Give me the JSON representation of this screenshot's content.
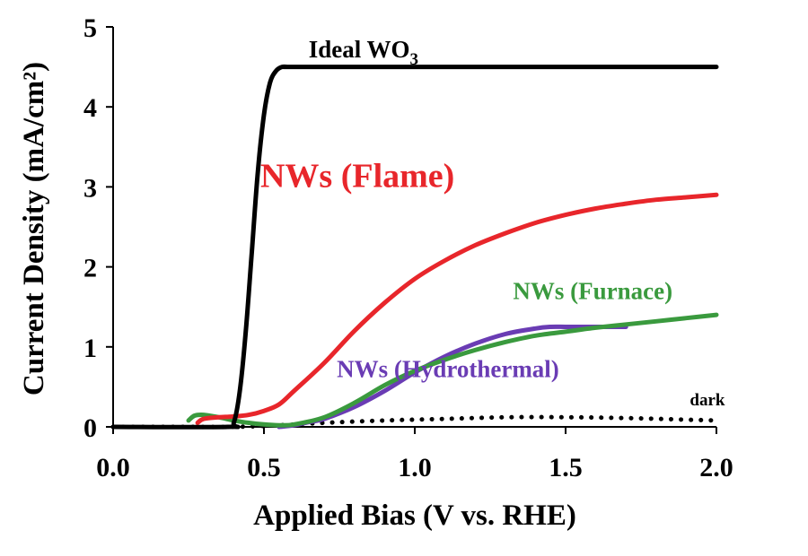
{
  "chart_data": {
    "type": "line",
    "xlabel": "Applied Bias (V vs. RHE)",
    "ylabel": "Current Density (mA/cm²)",
    "xlim": [
      0,
      2.0
    ],
    "ylim": [
      0,
      5
    ],
    "x_ticks": [
      "0.0",
      "0.5",
      "1.0",
      "1.5",
      "2.0"
    ],
    "y_ticks": [
      "0",
      "1",
      "2",
      "3",
      "4",
      "5"
    ],
    "grid": false,
    "legend": "inline labels",
    "series": [
      {
        "name": "Ideal WO3",
        "color": "#000000",
        "style": "solid",
        "x": [
          0.0,
          0.38,
          0.4,
          0.42,
          0.44,
          0.46,
          0.48,
          0.5,
          0.52,
          0.54,
          0.56,
          0.58,
          0.6,
          1.0,
          1.5,
          2.0
        ],
        "y": [
          0.0,
          0.0,
          0.05,
          0.45,
          1.2,
          2.2,
          3.2,
          3.9,
          4.3,
          4.45,
          4.5,
          4.5,
          4.5,
          4.5,
          4.5,
          4.5
        ]
      },
      {
        "name": "NWs (Flame)",
        "color": "#e8262b",
        "style": "solid",
        "x": [
          0.28,
          0.3,
          0.35,
          0.4,
          0.45,
          0.5,
          0.55,
          0.6,
          0.7,
          0.8,
          0.9,
          1.0,
          1.1,
          1.2,
          1.3,
          1.4,
          1.5,
          1.6,
          1.7,
          1.8,
          1.9,
          2.0
        ],
        "y": [
          0.05,
          0.1,
          0.12,
          0.13,
          0.15,
          0.2,
          0.28,
          0.45,
          0.8,
          1.2,
          1.55,
          1.85,
          2.08,
          2.27,
          2.42,
          2.55,
          2.65,
          2.73,
          2.79,
          2.84,
          2.87,
          2.9
        ]
      },
      {
        "name": "NWs (Furnace)",
        "color": "#3a9a3e",
        "style": "solid",
        "x": [
          0.25,
          0.27,
          0.3,
          0.35,
          0.4,
          0.45,
          0.5,
          0.55,
          0.6,
          0.7,
          0.8,
          0.9,
          1.0,
          1.1,
          1.2,
          1.3,
          1.4,
          1.5,
          1.6,
          1.7,
          1.8,
          1.9,
          2.0
        ],
        "y": [
          0.08,
          0.14,
          0.15,
          0.12,
          0.08,
          0.05,
          0.03,
          0.02,
          0.03,
          0.12,
          0.3,
          0.52,
          0.7,
          0.84,
          0.96,
          1.06,
          1.14,
          1.19,
          1.24,
          1.28,
          1.32,
          1.36,
          1.4
        ]
      },
      {
        "name": "NWs (Hydrothermal)",
        "color": "#6a3cb4",
        "style": "solid",
        "x": [
          0.55,
          0.6,
          0.65,
          0.7,
          0.8,
          0.9,
          1.0,
          1.1,
          1.2,
          1.3,
          1.4,
          1.45,
          1.5,
          1.55,
          1.6,
          1.65,
          1.7
        ],
        "y": [
          0.0,
          0.02,
          0.06,
          0.1,
          0.25,
          0.45,
          0.68,
          0.88,
          1.04,
          1.16,
          1.23,
          1.25,
          1.25,
          1.25,
          1.25,
          1.25,
          1.25
        ]
      },
      {
        "name": "dark",
        "color": "#000000",
        "style": "dotted",
        "x": [
          0.0,
          0.2,
          0.4,
          0.55,
          0.7,
          0.9,
          1.1,
          1.3,
          1.5,
          1.7,
          1.9,
          2.0
        ],
        "y": [
          0.0,
          0.0,
          0.0,
          0.02,
          0.05,
          0.08,
          0.1,
          0.12,
          0.12,
          0.11,
          0.09,
          0.08
        ]
      }
    ],
    "annotations": [
      {
        "series": "Ideal WO3",
        "text_main": "Ideal WO",
        "text_sub": "3",
        "color": "#000000",
        "x": 0.83,
        "y": 4.62
      },
      {
        "series": "NWs (Flame)",
        "text_main": "NWs (Flame)",
        "color": "#e8262b",
        "x": 0.81,
        "y": 3.0
      },
      {
        "series": "NWs (Furnace)",
        "text_main": "NWs (Furnace)",
        "color": "#3a9a3e",
        "x": 1.59,
        "y": 1.6
      },
      {
        "series": "NWs (Hydrothermal)",
        "text_main": "NWs (Hydrothermal)",
        "color": "#6a3cb4",
        "x": 1.11,
        "y": 0.62
      },
      {
        "series": "dark",
        "text_main": "dark",
        "color": "#000000",
        "x": 1.97,
        "y": 0.27
      }
    ]
  }
}
